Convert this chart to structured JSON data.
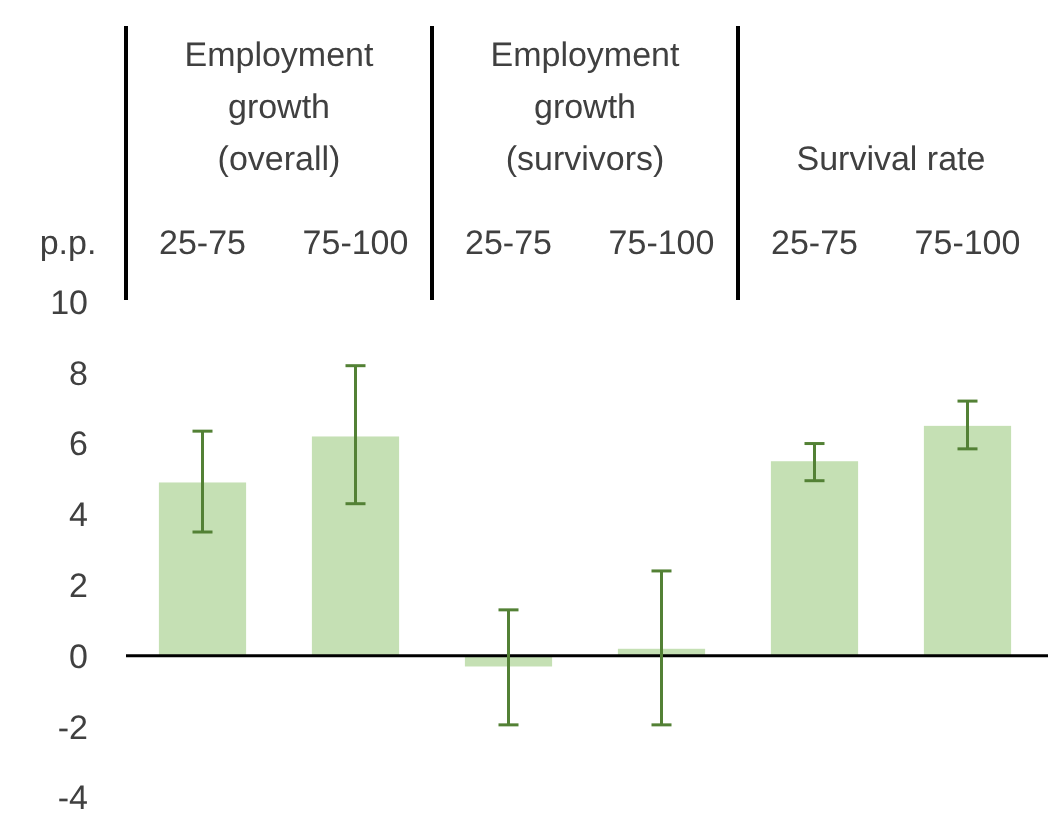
{
  "chart_data": {
    "type": "bar",
    "ylabel": "p.p.",
    "categories": [
      "25-75",
      "75-100",
      "25-75",
      "75-100",
      "25-75",
      "75-100"
    ],
    "values": [
      4.9,
      6.2,
      -0.3,
      0.2,
      5.5,
      6.5
    ],
    "errors": [
      [
        3.5,
        6.35
      ],
      [
        4.3,
        8.2
      ],
      [
        -1.95,
        1.3
      ],
      [
        -1.95,
        2.4
      ],
      [
        4.95,
        6.0
      ],
      [
        5.85,
        7.2
      ]
    ],
    "color": "#c5e0b4",
    "ylim": [
      -4,
      10
    ],
    "yticks": [
      -4,
      -2,
      0,
      2,
      4,
      6,
      8,
      10
    ],
    "annotations": [
      "Employment growth (overall)",
      "Employment growth (survivors)",
      "Survival rate"
    ]
  }
}
